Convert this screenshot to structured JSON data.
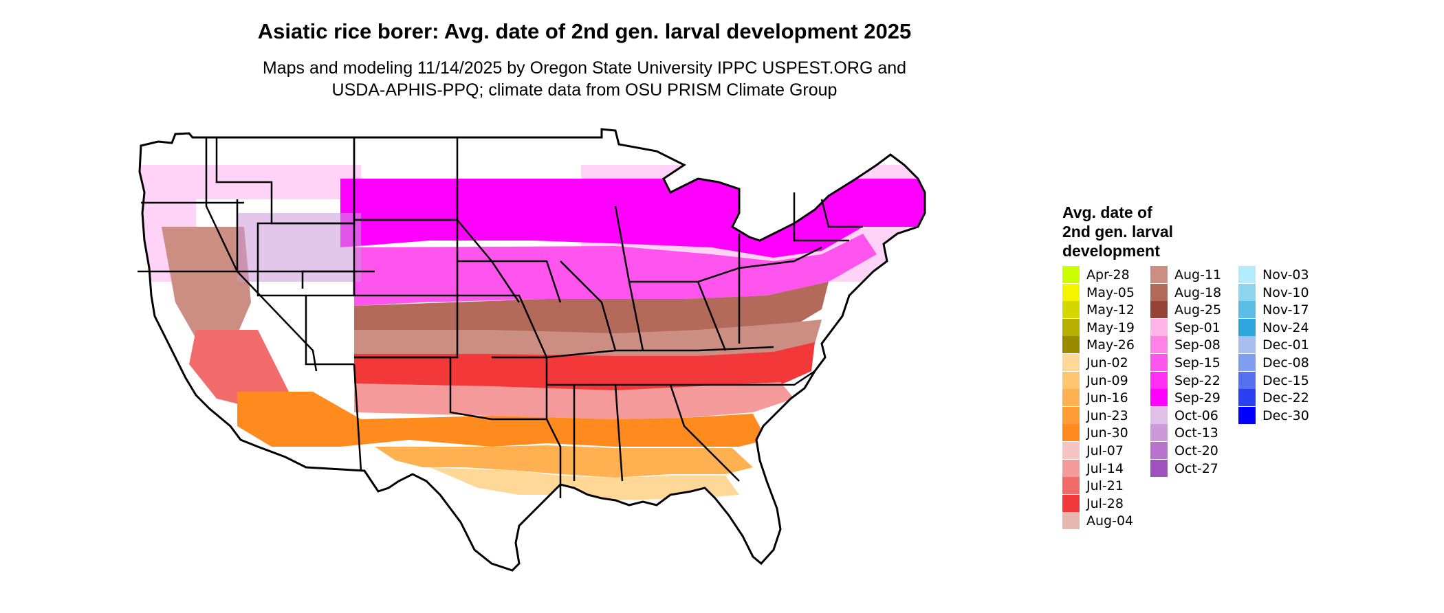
{
  "title": "Asiatic rice borer: Avg. date of 2nd gen. larval development 2025",
  "subtitle_line1": "Maps and modeling 11/14/2025 by Oregon State University IPPC USPEST.ORG and",
  "subtitle_line2": "USDA-APHIS-PPQ; climate data from OSU PRISM Climate Group",
  "legend": {
    "title_line1": "Avg. date of",
    "title_line2": "2nd gen. larval",
    "title_line3": "development",
    "items": [
      {
        "label": "Apr-28",
        "color": "#ccff00"
      },
      {
        "label": "May-05",
        "color": "#f5f500"
      },
      {
        "label": "May-12",
        "color": "#d6d600"
      },
      {
        "label": "May-19",
        "color": "#b8b000"
      },
      {
        "label": "May-26",
        "color": "#9a8a00"
      },
      {
        "label": "Jun-02",
        "color": "#ffd898"
      },
      {
        "label": "Jun-09",
        "color": "#ffc570"
      },
      {
        "label": "Jun-16",
        "color": "#ffb050"
      },
      {
        "label": "Jun-23",
        "color": "#ff9c35"
      },
      {
        "label": "Jun-30",
        "color": "#ff8a1e"
      },
      {
        "label": "Jul-07",
        "color": "#f7c4c4"
      },
      {
        "label": "Jul-14",
        "color": "#f59a9a"
      },
      {
        "label": "Jul-21",
        "color": "#f26b6b"
      },
      {
        "label": "Jul-28",
        "color": "#f23838"
      },
      {
        "label": "Aug-04",
        "color": "#e5b7ae"
      },
      {
        "label": "Aug-11",
        "color": "#cc8d82"
      },
      {
        "label": "Aug-18",
        "color": "#b36a5b"
      },
      {
        "label": "Aug-25",
        "color": "#964236"
      },
      {
        "label": "Sep-01",
        "color": "#ffb3e6"
      },
      {
        "label": "Sep-08",
        "color": "#ff80e8"
      },
      {
        "label": "Sep-15",
        "color": "#ff55ee"
      },
      {
        "label": "Sep-22",
        "color": "#ff2ef2"
      },
      {
        "label": "Sep-29",
        "color": "#ff00ff"
      },
      {
        "label": "Oct-06",
        "color": "#e0c0e8"
      },
      {
        "label": "Oct-13",
        "color": "#cc99d9"
      },
      {
        "label": "Oct-20",
        "color": "#b874cc"
      },
      {
        "label": "Oct-27",
        "color": "#a050bf"
      },
      {
        "label": "Nov-03",
        "color": "#b3ecff"
      },
      {
        "label": "Nov-10",
        "color": "#8ed6f0"
      },
      {
        "label": "Nov-17",
        "color": "#5cbde6"
      },
      {
        "label": "Nov-24",
        "color": "#2ea6dd"
      },
      {
        "label": "Dec-01",
        "color": "#a6bfef"
      },
      {
        "label": "Dec-08",
        "color": "#7f9ef0"
      },
      {
        "label": "Dec-15",
        "color": "#5571ee"
      },
      {
        "label": "Dec-22",
        "color": "#2a40f2"
      },
      {
        "label": "Dec-30",
        "color": "#0000ff"
      }
    ]
  }
}
